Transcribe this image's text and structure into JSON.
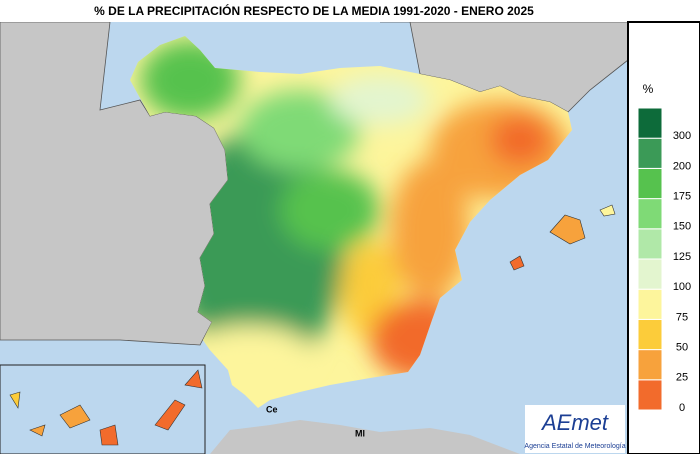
{
  "title": "% DE LA PRECIPITACIÓN RESPECTO DE LA MEDIA 1991-2020 - ENERO 2025",
  "legend": {
    "unit": "%",
    "ticks": [
      0,
      25,
      50,
      75,
      100,
      125,
      150,
      175,
      200,
      300
    ],
    "colors": [
      "#f26b2c",
      "#f7a23c",
      "#fccc3a",
      "#fdf59c",
      "#e3f5cf",
      "#b0e8a8",
      "#7fda76",
      "#56c24e",
      "#3b9a57",
      "#0d6b3a"
    ]
  },
  "labels": {
    "ceuta": "Ce",
    "melilla": "Ml"
  },
  "logo": {
    "name": "AEmet",
    "subtitle": "Agencia Estatal de Meteorología"
  }
}
